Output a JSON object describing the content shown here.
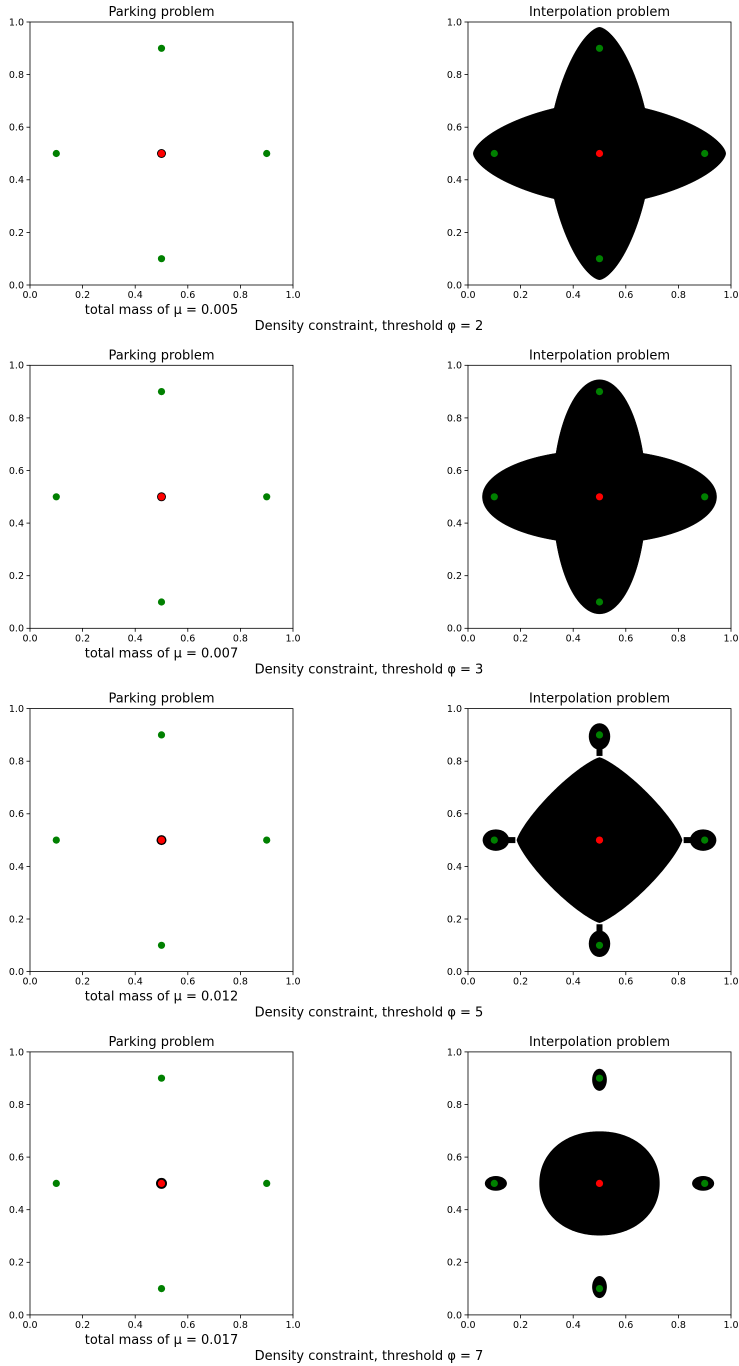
{
  "chart_data": [
    {
      "row_caption": "Density constraint, threshold",
      "threshold": 2,
      "panels": [
        {
          "type": "scatter",
          "title": "Parking problem",
          "xlabel": "total mass of μ = 0.005",
          "xlim": [
            0.0,
            1.0
          ],
          "ylim": [
            0.0,
            1.0
          ],
          "ticks": [
            "0.0",
            "0.2",
            "0.4",
            "0.6",
            "0.8",
            "1.0"
          ],
          "grid": false,
          "region": {
            "shape": "blob",
            "center": [
              0.5,
              0.5
            ],
            "radius": 0.018
          },
          "series": [
            {
              "color": "#008000",
              "points": [
                [
                  0.5,
                  0.9
                ],
                [
                  0.1,
                  0.5
                ],
                [
                  0.9,
                  0.5
                ],
                [
                  0.5,
                  0.1
                ]
              ]
            },
            {
              "color": "#ff0000",
              "points": [
                [
                  0.5,
                  0.5
                ]
              ]
            }
          ]
        },
        {
          "type": "scatter",
          "title": "Interpolation problem",
          "xlabel": "",
          "xlim": [
            0.0,
            1.0
          ],
          "ylim": [
            0.0,
            1.0
          ],
          "ticks": [
            "0.0",
            "0.2",
            "0.4",
            "0.6",
            "0.8",
            "1.0"
          ],
          "grid": false,
          "region": {
            "shape": "superellipse",
            "center": [
              0.5,
              0.5
            ],
            "radius": 0.48,
            "ratio": 0.41,
            "exponent": 1.6
          },
          "series": [
            {
              "color": "#008000",
              "points": [
                [
                  0.5,
                  0.9
                ],
                [
                  0.1,
                  0.5
                ],
                [
                  0.9,
                  0.5
                ],
                [
                  0.5,
                  0.1
                ]
              ]
            },
            {
              "color": "#ff0000",
              "points": [
                [
                  0.5,
                  0.5
                ]
              ]
            }
          ]
        }
      ]
    },
    {
      "row_caption": "Density constraint, threshold",
      "threshold": 3,
      "panels": [
        {
          "type": "scatter",
          "title": "Parking problem",
          "xlabel": "total mass of μ = 0.007",
          "xlim": [
            0.0,
            1.0
          ],
          "ylim": [
            0.0,
            1.0
          ],
          "ticks": [
            "0.0",
            "0.2",
            "0.4",
            "0.6",
            "0.8",
            "1.0"
          ],
          "grid": false,
          "region": {
            "shape": "blob",
            "center": [
              0.5,
              0.5
            ],
            "radius": 0.018
          },
          "series": [
            {
              "color": "#008000",
              "points": [
                [
                  0.5,
                  0.9
                ],
                [
                  0.1,
                  0.5
                ],
                [
                  0.9,
                  0.5
                ],
                [
                  0.5,
                  0.1
                ]
              ]
            },
            {
              "color": "#ff0000",
              "points": [
                [
                  0.5,
                  0.5
                ]
              ]
            }
          ]
        },
        {
          "type": "scatter",
          "title": "Interpolation problem",
          "xlabel": "",
          "xlim": [
            0.0,
            1.0
          ],
          "ylim": [
            0.0,
            1.0
          ],
          "ticks": [
            "0.0",
            "0.2",
            "0.4",
            "0.6",
            "0.8",
            "1.0"
          ],
          "grid": false,
          "region": {
            "shape": "superellipse",
            "center": [
              0.5,
              0.5
            ],
            "radius": 0.445,
            "ratio": 0.4,
            "exponent": 2.0
          },
          "series": [
            {
              "color": "#008000",
              "points": [
                [
                  0.5,
                  0.9
                ],
                [
                  0.1,
                  0.5
                ],
                [
                  0.9,
                  0.5
                ],
                [
                  0.5,
                  0.1
                ]
              ]
            },
            {
              "color": "#ff0000",
              "points": [
                [
                  0.5,
                  0.5
                ]
              ]
            }
          ]
        }
      ]
    },
    {
      "row_caption": "Density constraint, threshold",
      "threshold": 5,
      "panels": [
        {
          "type": "scatter",
          "title": "Parking problem",
          "xlabel": "total mass of μ = 0.012",
          "xlim": [
            0.0,
            1.0
          ],
          "ylim": [
            0.0,
            1.0
          ],
          "ticks": [
            "0.0",
            "0.2",
            "0.4",
            "0.6",
            "0.8",
            "1.0"
          ],
          "grid": false,
          "region": {
            "shape": "blob",
            "center": [
              0.5,
              0.5
            ],
            "radius": 0.02
          },
          "series": [
            {
              "color": "#008000",
              "points": [
                [
                  0.5,
                  0.9
                ],
                [
                  0.1,
                  0.5
                ],
                [
                  0.9,
                  0.5
                ],
                [
                  0.5,
                  0.1
                ]
              ]
            },
            {
              "color": "#ff0000",
              "points": [
                [
                  0.5,
                  0.5
                ]
              ]
            }
          ]
        },
        {
          "type": "scatter",
          "title": "Interpolation problem",
          "xlabel": "",
          "xlim": [
            0.0,
            1.0
          ],
          "ylim": [
            0.0,
            1.0
          ],
          "ticks": [
            "0.0",
            "0.2",
            "0.4",
            "0.6",
            "0.8",
            "1.0"
          ],
          "grid": false,
          "region": {
            "shape": "diamond-lobes",
            "center": [
              0.5,
              0.5
            ],
            "radius": 0.315,
            "lobe_radius": 0.048
          },
          "series": [
            {
              "color": "#008000",
              "points": [
                [
                  0.5,
                  0.9
                ],
                [
                  0.1,
                  0.5
                ],
                [
                  0.9,
                  0.5
                ],
                [
                  0.5,
                  0.1
                ]
              ]
            },
            {
              "color": "#ff0000",
              "points": [
                [
                  0.5,
                  0.5
                ]
              ]
            }
          ]
        }
      ]
    },
    {
      "row_caption": "Density constraint, threshold",
      "threshold": 7,
      "panels": [
        {
          "type": "scatter",
          "title": "Parking problem",
          "xlabel": "total mass of μ = 0.017",
          "xlim": [
            0.0,
            1.0
          ],
          "ylim": [
            0.0,
            1.0
          ],
          "ticks": [
            "0.0",
            "0.2",
            "0.4",
            "0.6",
            "0.8",
            "1.0"
          ],
          "grid": false,
          "region": {
            "shape": "blob",
            "center": [
              0.5,
              0.5
            ],
            "radius": 0.022
          },
          "series": [
            {
              "color": "#008000",
              "points": [
                [
                  0.5,
                  0.9
                ],
                [
                  0.1,
                  0.5
                ],
                [
                  0.9,
                  0.5
                ],
                [
                  0.5,
                  0.1
                ]
              ]
            },
            {
              "color": "#ff0000",
              "points": [
                [
                  0.5,
                  0.5
                ]
              ]
            }
          ]
        },
        {
          "type": "scatter",
          "title": "Interpolation problem",
          "xlabel": "",
          "xlim": [
            0.0,
            1.0
          ],
          "ylim": [
            0.0,
            1.0
          ],
          "ticks": [
            "0.0",
            "0.2",
            "0.4",
            "0.6",
            "0.8",
            "1.0"
          ],
          "grid": false,
          "region": {
            "shape": "rounded-square-islands",
            "center": [
              0.5,
              0.5
            ],
            "radius": 0.22,
            "island_radius": 0.035
          },
          "series": [
            {
              "color": "#008000",
              "points": [
                [
                  0.5,
                  0.9
                ],
                [
                  0.1,
                  0.5
                ],
                [
                  0.9,
                  0.5
                ],
                [
                  0.5,
                  0.1
                ]
              ]
            },
            {
              "color": "#ff0000",
              "points": [
                [
                  0.5,
                  0.5
                ]
              ]
            }
          ]
        }
      ]
    }
  ]
}
